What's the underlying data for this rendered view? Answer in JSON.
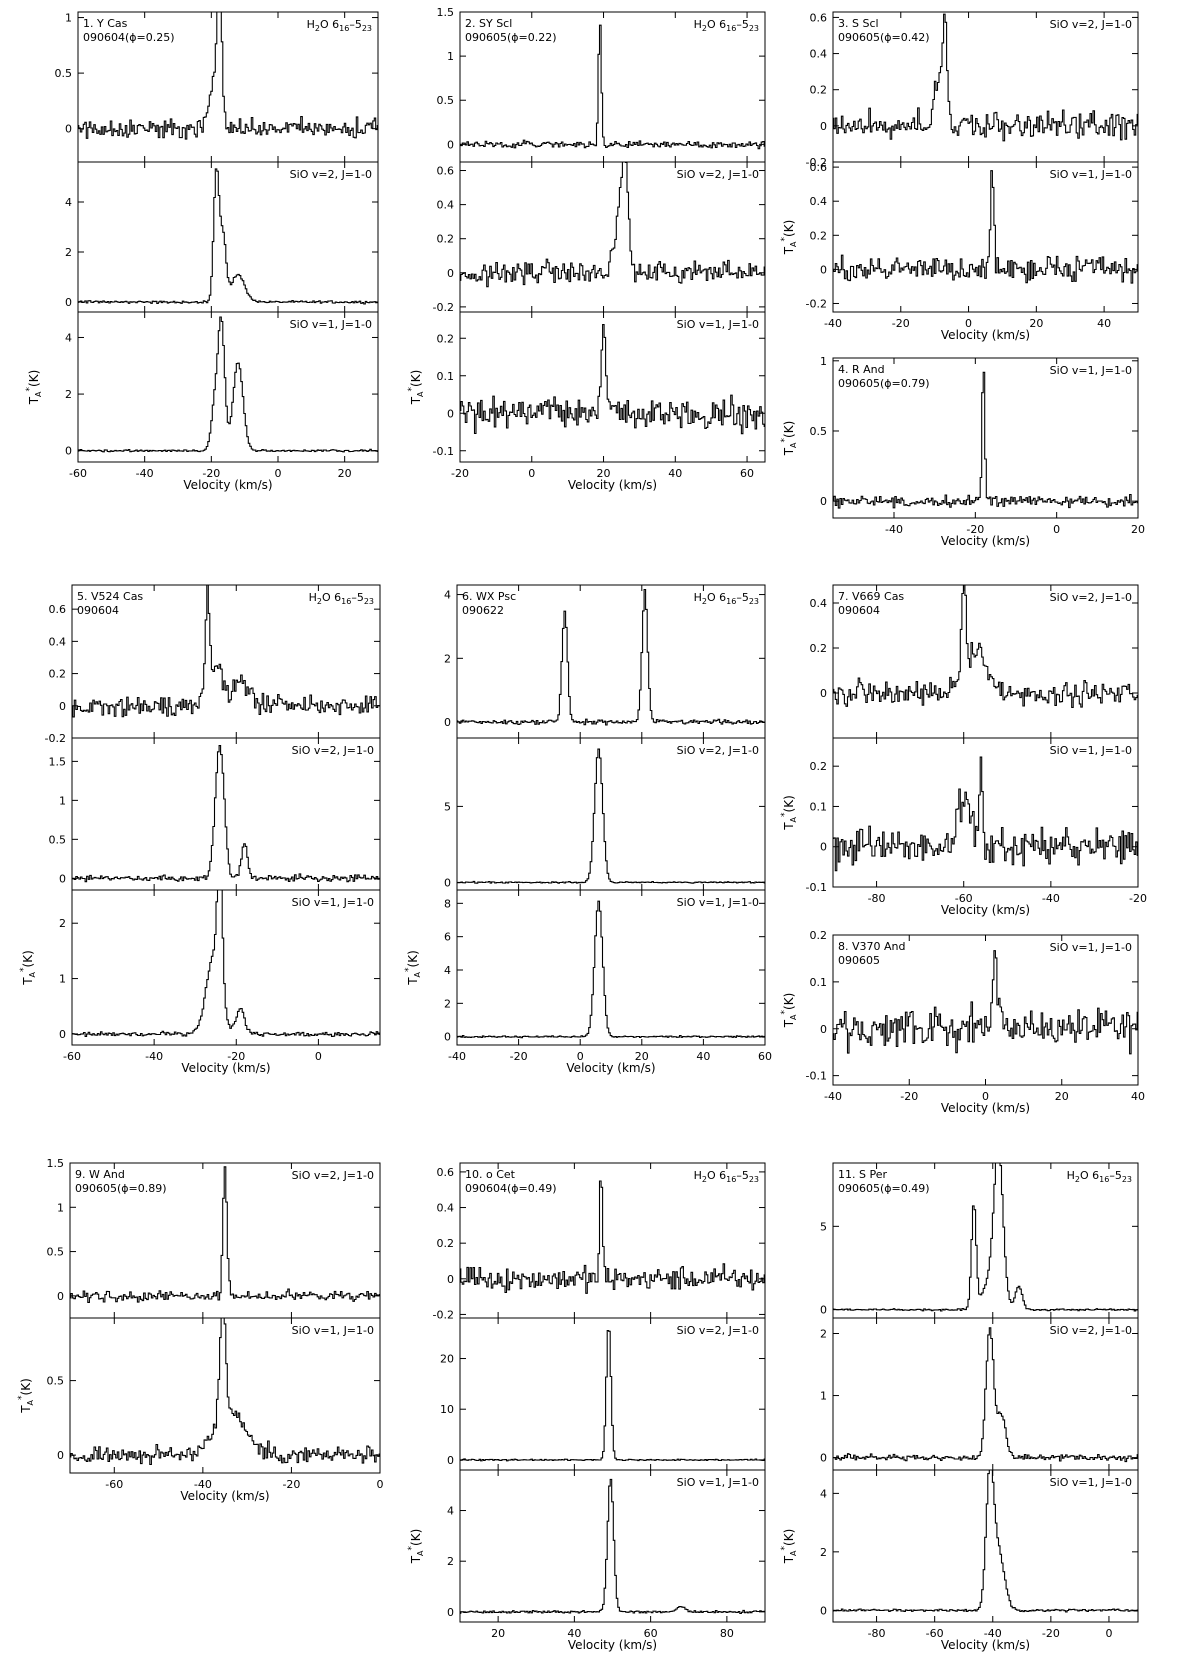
{
  "figure": {
    "xlabel": "Velocity (km/s)",
    "ylabel": "T",
    "ylabel_sub": "A",
    "ylabel_sup": "*",
    "ylabel_unit": "(K)"
  },
  "chart_data": [
    {
      "type": "line",
      "id": 1,
      "star": "1. Y Cas",
      "date": "090604(ϕ=0.25)",
      "xlim": [
        -60,
        30
      ],
      "xticks": [
        -60,
        -40,
        -20,
        0,
        20
      ],
      "panels": [
        {
          "transition": "H2O 616-523",
          "ylim": [
            -0.3,
            1.05
          ],
          "yticks": [
            0,
            0.5,
            1
          ],
          "noise": 0.09,
          "peaks": [
            {
              "v": -19,
              "a": 0.45,
              "w": 1.5
            },
            {
              "v": -17.5,
              "a": 0.95,
              "w": 0.7
            }
          ]
        },
        {
          "transition": "SiO v=2, J=1-0",
          "ylim": [
            -0.4,
            5.6
          ],
          "yticks": [
            0,
            2,
            4
          ],
          "noise": 0.05,
          "peaks": [
            {
              "v": -18.5,
              "a": 5.2,
              "w": 0.8
            },
            {
              "v": -16.5,
              "a": 2.6,
              "w": 0.9
            },
            {
              "v": -12,
              "a": 1.1,
              "w": 2
            }
          ]
        },
        {
          "transition": "SiO v=1, J=1-0",
          "ylim": [
            -0.4,
            4.9
          ],
          "yticks": [
            0,
            2,
            4
          ],
          "noise": 0.04,
          "peaks": [
            {
              "v": -17,
              "a": 4.5,
              "w": 1
            },
            {
              "v": -19,
              "a": 1.6,
              "w": 1
            },
            {
              "v": -12,
              "a": 3.1,
              "w": 1.5
            }
          ]
        }
      ]
    },
    {
      "type": "line",
      "id": 2,
      "star": "2. SY Scl",
      "date": "090605(ϕ=0.22)",
      "xlim": [
        -20,
        65
      ],
      "xticks": [
        -20,
        0,
        20,
        40,
        60
      ],
      "panels": [
        {
          "transition": "H2O 616-523",
          "ylim": [
            -0.2,
            1.5
          ],
          "yticks": [
            0,
            0.5,
            1,
            1.5
          ],
          "noise": 0.04,
          "peaks": [
            {
              "v": 19,
              "a": 1.4,
              "w": 0.4
            }
          ]
        },
        {
          "transition": "SiO v=2, J=1-0",
          "ylim": [
            -0.23,
            0.65
          ],
          "yticks": [
            -0.2,
            0,
            0.2,
            0.4,
            0.6
          ],
          "noise": 0.07,
          "peaks": [
            {
              "v": 24.5,
              "a": 0.3,
              "w": 1.5
            },
            {
              "v": 26,
              "a": 0.58,
              "w": 0.8
            }
          ]
        },
        {
          "transition": "SiO v=1, J=1-0",
          "ylim": [
            -0.13,
            0.27
          ],
          "yticks": [
            -0.1,
            0,
            0.1,
            0.2
          ],
          "noise": 0.045,
          "peaks": [
            {
              "v": 20,
              "a": 0.24,
              "w": 0.6
            }
          ]
        }
      ]
    },
    {
      "type": "line",
      "id": 3,
      "star": "3. S Scl",
      "date": "090605(ϕ=0.42)",
      "xlim": [
        -40,
        50
      ],
      "xticks": [
        -40,
        -20,
        0,
        20,
        40
      ],
      "panels": [
        {
          "transition": "SiO v=2, J=1-0",
          "ylim": [
            -0.2,
            0.63
          ],
          "yticks": [
            -0.2,
            0,
            0.2,
            0.4,
            0.6
          ],
          "noise": 0.08,
          "peaks": [
            {
              "v": -7,
              "a": 0.55,
              "w": 0.7
            },
            {
              "v": -9,
              "a": 0.25,
              "w": 1.2
            }
          ]
        },
        {
          "transition": "SiO v=1, J=1-0",
          "ylim": [
            -0.25,
            0.63
          ],
          "yticks": [
            -0.2,
            0,
            0.2,
            0.4,
            0.6
          ],
          "noise": 0.075,
          "peaks": [
            {
              "v": 7,
              "a": 0.57,
              "w": 0.5
            }
          ]
        }
      ]
    },
    {
      "type": "line",
      "id": 4,
      "star": "4. R And",
      "date": "090605(ϕ=0.79)",
      "xlim": [
        -55,
        20
      ],
      "xticks": [
        -40,
        -20,
        0,
        20
      ],
      "panels": [
        {
          "transition": "SiO v=1, J=1-0",
          "ylim": [
            -0.12,
            1.02
          ],
          "yticks": [
            0,
            0.5,
            1
          ],
          "noise": 0.04,
          "peaks": [
            {
              "v": -18,
              "a": 0.95,
              "w": 0.35
            }
          ]
        }
      ]
    },
    {
      "type": "line",
      "id": 5,
      "star": "5. V524 Cas",
      "date": "090604",
      "xlim": [
        -60,
        15
      ],
      "xticks": [
        -60,
        -40,
        -20,
        0
      ],
      "panels": [
        {
          "transition": "H2O 616-523",
          "ylim": [
            -0.2,
            0.75
          ],
          "yticks": [
            -0.2,
            0,
            0.2,
            0.4,
            0.6
          ],
          "noise": 0.07,
          "peaks": [
            {
              "v": -27,
              "a": 0.62,
              "w": 0.5
            },
            {
              "v": -25,
              "a": 0.25,
              "w": 1.5
            },
            {
              "v": -19,
              "a": 0.15,
              "w": 2
            }
          ]
        },
        {
          "transition": "SiO v=2, J=1-0",
          "ylim": [
            -0.15,
            1.8
          ],
          "yticks": [
            0,
            0.5,
            1,
            1.5
          ],
          "noise": 0.04,
          "peaks": [
            {
              "v": -24,
              "a": 1.7,
              "w": 1.1
            },
            {
              "v": -18,
              "a": 0.45,
              "w": 0.7
            }
          ]
        },
        {
          "transition": "SiO v=1, J=1-0",
          "ylim": [
            -0.2,
            2.6
          ],
          "yticks": [
            0,
            1,
            2
          ],
          "noise": 0.04,
          "peaks": [
            {
              "v": -24,
              "a": 2.4,
              "w": 0.6
            },
            {
              "v": -25.5,
              "a": 1.4,
              "w": 1.8
            },
            {
              "v": -19,
              "a": 0.45,
              "w": 1
            }
          ]
        }
      ]
    },
    {
      "type": "line",
      "id": 6,
      "star": "6. WX Psc",
      "date": "090622",
      "xlim": [
        -40,
        60
      ],
      "xticks": [
        -40,
        -20,
        0,
        20,
        40,
        60
      ],
      "panels": [
        {
          "transition": "H2O 616-523",
          "ylim": [
            -0.5,
            4.3
          ],
          "yticks": [
            0,
            2,
            4
          ],
          "noise": 0.07,
          "peaks": [
            {
              "v": -5,
              "a": 3.5,
              "w": 0.9
            },
            {
              "v": 21,
              "a": 4.1,
              "w": 0.9
            }
          ]
        },
        {
          "transition": "SiO v=2, J=1-0",
          "ylim": [
            -0.5,
            9.5
          ],
          "yticks": [
            0,
            5
          ],
          "noise": 0.05,
          "peaks": [
            {
              "v": 6,
              "a": 8.8,
              "w": 1.3
            }
          ]
        },
        {
          "transition": "SiO v=1, J=1-0",
          "ylim": [
            -0.5,
            8.8
          ],
          "yticks": [
            0,
            2,
            4,
            6,
            8
          ],
          "noise": 0.05,
          "peaks": [
            {
              "v": 6,
              "a": 8.1,
              "w": 1.3
            }
          ]
        }
      ]
    },
    {
      "type": "line",
      "id": 7,
      "star": "7. V669 Cas",
      "date": "090604",
      "xlim": [
        -90,
        -20
      ],
      "xticks": [
        -80,
        -60,
        -40,
        -20
      ],
      "panels": [
        {
          "transition": "SiO v=2, J=1-0",
          "ylim": [
            -0.2,
            0.48
          ],
          "yticks": [
            0,
            0.2,
            0.4
          ],
          "noise": 0.06,
          "peaks": [
            {
              "v": -60,
              "a": 0.43,
              "w": 0.5
            },
            {
              "v": -57,
              "a": 0.2,
              "w": 2.5
            }
          ]
        },
        {
          "transition": "SiO v=1, J=1-0",
          "ylim": [
            -0.1,
            0.27
          ],
          "yticks": [
            -0.1,
            0,
            0.1,
            0.2
          ],
          "noise": 0.05,
          "peaks": [
            {
              "v": -56,
              "a": 0.22,
              "w": 0.4
            },
            {
              "v": -60,
              "a": 0.12,
              "w": 1.5
            }
          ]
        }
      ]
    },
    {
      "type": "line",
      "id": 8,
      "star": "8. V370 And",
      "date": "090605",
      "xlim": [
        -40,
        40
      ],
      "xticks": [
        -40,
        -20,
        0,
        20,
        40
      ],
      "panels": [
        {
          "transition": "SiO v=1, J=1-0",
          "ylim": [
            -0.12,
            0.2
          ],
          "yticks": [
            -0.1,
            0,
            0.1,
            0.2
          ],
          "noise": 0.045,
          "peaks": [
            {
              "v": 2.5,
              "a": 0.16,
              "w": 0.6
            }
          ]
        }
      ]
    },
    {
      "type": "line",
      "id": 9,
      "star": "9. W And",
      "date": "090605(ϕ=0.89)",
      "xlim": [
        -70,
        0
      ],
      "xticks": [
        -60,
        -40,
        -20,
        0
      ],
      "panels": [
        {
          "transition": "SiO v=2, J=1-0",
          "ylim": [
            -0.25,
            1.5
          ],
          "yticks": [
            0,
            0.5,
            1,
            1.5
          ],
          "noise": 0.06,
          "peaks": [
            {
              "v": -35,
              "a": 1.45,
              "w": 0.45
            }
          ]
        },
        {
          "transition": "SiO v=1, J=1-0",
          "ylim": [
            -0.12,
            0.92
          ],
          "yticks": [
            0,
            0.5
          ],
          "noise": 0.06,
          "peaks": [
            {
              "v": -35.5,
              "a": 0.85,
              "w": 0.6
            },
            {
              "v": -34,
              "a": 0.3,
              "w": 3.5
            }
          ]
        }
      ]
    },
    {
      "type": "line",
      "id": 10,
      "star": "10. o Cet",
      "date": "090604(ϕ=0.49)",
      "xlim": [
        10,
        90
      ],
      "xticks": [
        20,
        40,
        60,
        80
      ],
      "panels": [
        {
          "transition": "H2O 616-523",
          "ylim": [
            -0.22,
            0.65
          ],
          "yticks": [
            -0.2,
            0,
            0.2,
            0.4,
            0.6
          ],
          "noise": 0.07,
          "peaks": [
            {
              "v": 47,
              "a": 0.62,
              "w": 0.35
            }
          ]
        },
        {
          "transition": "SiO v=2, J=1-0",
          "ylim": [
            -2,
            28
          ],
          "yticks": [
            0,
            10,
            20
          ],
          "noise": 0.15,
          "peaks": [
            {
              "v": 49,
              "a": 27,
              "w": 0.6
            }
          ]
        },
        {
          "transition": "SiO v=1, J=1-0",
          "ylim": [
            -0.4,
            5.6
          ],
          "yticks": [
            0,
            2,
            4
          ],
          "noise": 0.05,
          "peaks": [
            {
              "v": 49.5,
              "a": 5.3,
              "w": 0.8
            },
            {
              "v": 68,
              "a": 0.2,
              "w": 1
            }
          ]
        }
      ]
    },
    {
      "type": "line",
      "id": 11,
      "star": "11. S Per",
      "date": "090605(ϕ=0.49)",
      "xlim": [
        -95,
        10
      ],
      "xticks": [
        -80,
        -60,
        -40,
        -20,
        0
      ],
      "panels": [
        {
          "transition": "H2O 616-523",
          "ylim": [
            -0.5,
            8.8
          ],
          "yticks": [
            0,
            5
          ],
          "noise": 0.06,
          "peaks": [
            {
              "v": -46.5,
              "a": 6.2,
              "w": 0.8
            },
            {
              "v": -38,
              "a": 8.3,
              "w": 1.5
            },
            {
              "v": -40,
              "a": 2,
              "w": 3
            },
            {
              "v": -31,
              "a": 1.4,
              "w": 1.2
            }
          ]
        },
        {
          "transition": "SiO v=2, J=1-0",
          "ylim": [
            -0.2,
            2.25
          ],
          "yticks": [
            0,
            1,
            2
          ],
          "noise": 0.05,
          "peaks": [
            {
              "v": -41,
              "a": 2.1,
              "w": 1.3
            },
            {
              "v": -37,
              "a": 0.7,
              "w": 1.5
            }
          ]
        },
        {
          "transition": "SiO v=1, J=1-0",
          "ylim": [
            -0.4,
            4.8
          ],
          "yticks": [
            0,
            2,
            4
          ],
          "noise": 0.05,
          "peaks": [
            {
              "v": -41,
              "a": 4.5,
              "w": 1.3
            },
            {
              "v": -38,
              "a": 2,
              "w": 2
            }
          ]
        }
      ]
    }
  ]
}
